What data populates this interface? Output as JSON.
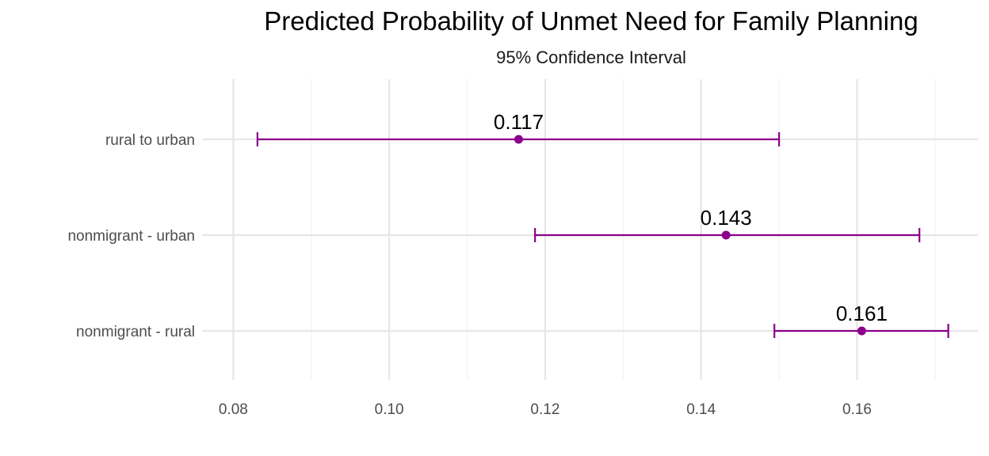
{
  "chart_data": {
    "type": "scatter",
    "title": "Predicted Probability of Unmet Need for Family Planning",
    "subtitle": "95% Confidence Interval",
    "xlabel": "",
    "ylabel": "",
    "xlim": [
      0.076,
      0.1755
    ],
    "x_ticks": [
      0.08,
      0.1,
      0.12,
      0.14,
      0.16
    ],
    "x_tick_labels": [
      "0.08",
      "0.10",
      "0.12",
      "0.14",
      "0.16"
    ],
    "x_minor_ticks": [
      0.09,
      0.11,
      0.13,
      0.15,
      0.17
    ],
    "categories": [
      "rural to urban",
      "nonmigrant - urban",
      "nonmigrant - rural"
    ],
    "points": [
      {
        "category": "rural to urban",
        "estimate": 0.1166,
        "lower": 0.0831,
        "upper": 0.15,
        "label": "0.117"
      },
      {
        "category": "nonmigrant - urban",
        "estimate": 0.1432,
        "lower": 0.1187,
        "upper": 0.168,
        "label": "0.143"
      },
      {
        "category": "nonmigrant - rural",
        "estimate": 0.1606,
        "lower": 0.1494,
        "upper": 0.1717,
        "label": "0.161"
      }
    ],
    "grid": true,
    "legend": "none",
    "colors": {
      "series": "#8B008B",
      "grid_major": "#e6e6e6",
      "grid_minor": "#f2f2f2",
      "axis_text": "#4d4d4d",
      "label_text": "#000000"
    }
  }
}
